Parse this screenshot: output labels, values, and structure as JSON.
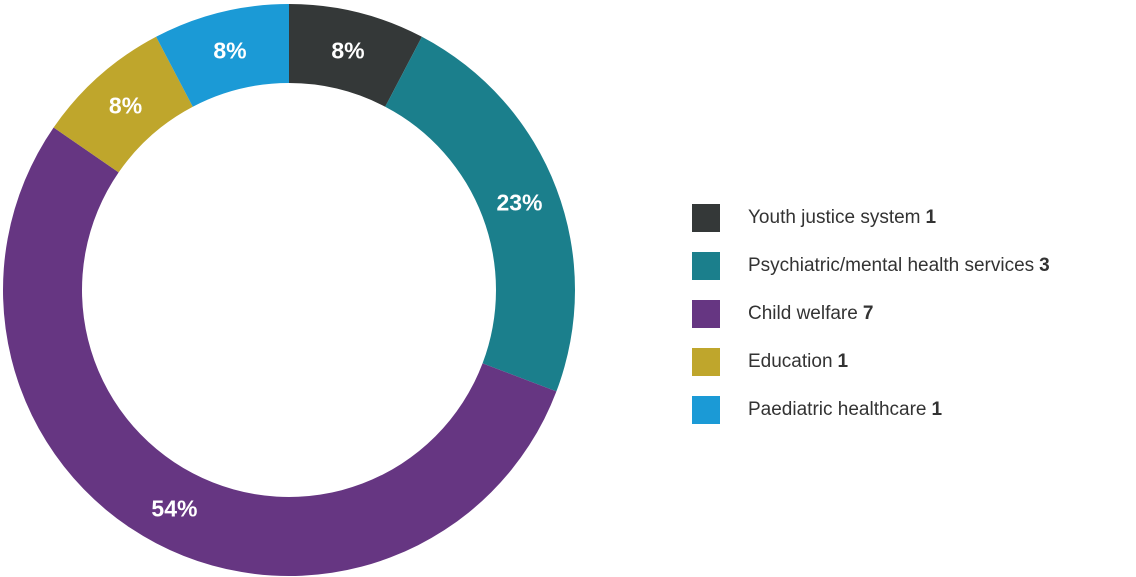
{
  "chart_data": {
    "type": "pie",
    "style": "donut",
    "legend_position": "right",
    "slices": [
      {
        "label": "Youth justice system",
        "count": "1",
        "value": 1,
        "percent_label": "8%",
        "color": "#343838"
      },
      {
        "label": "Psychiatric/mental health services",
        "count": "3",
        "value": 3,
        "percent_label": "23%",
        "color": "#1b7f8c"
      },
      {
        "label": "Child welfare",
        "count": "7",
        "value": 7,
        "percent_label": "54%",
        "color": "#663682"
      },
      {
        "label": "Education",
        "count": "1",
        "value": 1,
        "percent_label": "8%",
        "color": "#bfa62c"
      },
      {
        "label": "Paediatric healthcare",
        "count": "1",
        "value": 1,
        "percent_label": "8%",
        "color": "#1b9ad6"
      }
    ]
  }
}
